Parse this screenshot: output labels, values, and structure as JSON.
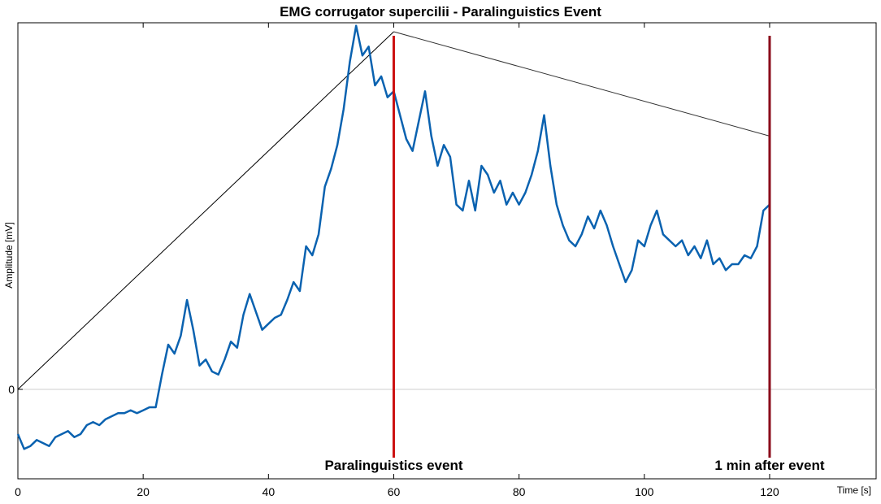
{
  "chart_data": {
    "type": "line",
    "title": "EMG corrugator supercilii - Paralinguistics Event",
    "xlabel": "Time [s]",
    "ylabel": "Amplitude [mV]",
    "xlim": [
      0,
      137
    ],
    "ylim": [
      -0.3,
      1.23
    ],
    "grid": false,
    "x_ticks": [
      0,
      20,
      40,
      60,
      80,
      100,
      120
    ],
    "x_tick_labels": [
      "0",
      "20",
      "40",
      "60",
      "80",
      "100",
      "120"
    ],
    "y_ticks": [
      0
    ],
    "y_tick_labels": [
      "0"
    ],
    "zero_line": true,
    "series": [
      {
        "color": "#0a62b0",
        "x": [
          0,
          1,
          2,
          3,
          4,
          5,
          6,
          7,
          8,
          9,
          10,
          11,
          12,
          13,
          14,
          15,
          16,
          17,
          18,
          19,
          20,
          21,
          22,
          23,
          24,
          25,
          26,
          27,
          28,
          29,
          30,
          31,
          32,
          33,
          34,
          35,
          36,
          37,
          38,
          39,
          40,
          41,
          42,
          43,
          44,
          45,
          46,
          47,
          48,
          49,
          50,
          51,
          52,
          53,
          54,
          55,
          56,
          57,
          58,
          59,
          60,
          61,
          62,
          63,
          64,
          65,
          66,
          67,
          68,
          69,
          70,
          71,
          72,
          73,
          74,
          75,
          76,
          77,
          78,
          79,
          80,
          81,
          82,
          83,
          84,
          85,
          86,
          87,
          88,
          89,
          90,
          91,
          92,
          93,
          94,
          95,
          96,
          97,
          98,
          99,
          100,
          101,
          102,
          103,
          104,
          105,
          106,
          107,
          108,
          109,
          110,
          111,
          112,
          113,
          114,
          115,
          116,
          117,
          118,
          119,
          120
        ],
        "values": [
          -0.15,
          -0.2,
          -0.19,
          -0.17,
          -0.18,
          -0.19,
          -0.16,
          -0.15,
          -0.14,
          -0.16,
          -0.15,
          -0.12,
          -0.11,
          -0.12,
          -0.1,
          -0.09,
          -0.08,
          -0.08,
          -0.07,
          -0.08,
          -0.07,
          -0.06,
          -0.06,
          0.05,
          0.15,
          0.12,
          0.18,
          0.3,
          0.2,
          0.08,
          0.1,
          0.06,
          0.05,
          0.1,
          0.16,
          0.14,
          0.25,
          0.32,
          0.26,
          0.2,
          0.22,
          0.24,
          0.25,
          0.3,
          0.36,
          0.33,
          0.48,
          0.45,
          0.52,
          0.68,
          0.74,
          0.82,
          0.94,
          1.1,
          1.22,
          1.12,
          1.15,
          1.02,
          1.05,
          0.98,
          1.0,
          0.92,
          0.84,
          0.8,
          0.9,
          1.0,
          0.85,
          0.75,
          0.82,
          0.78,
          0.62,
          0.6,
          0.7,
          0.6,
          0.75,
          0.72,
          0.66,
          0.7,
          0.62,
          0.66,
          0.62,
          0.66,
          0.72,
          0.8,
          0.92,
          0.75,
          0.62,
          0.55,
          0.5,
          0.48,
          0.52,
          0.58,
          0.54,
          0.6,
          0.55,
          0.48,
          0.42,
          0.36,
          0.4,
          0.5,
          0.48,
          0.55,
          0.6,
          0.52,
          0.5,
          0.48,
          0.5,
          0.45,
          0.48,
          0.44,
          0.5,
          0.42,
          0.44,
          0.4,
          0.42,
          0.42,
          0.45,
          0.44,
          0.48,
          0.6,
          0.62
        ]
      }
    ],
    "guide_lines": [
      {
        "color": "#000000",
        "x": [
          0,
          60
        ],
        "y": [
          0,
          1.2
        ]
      },
      {
        "color": "#333333",
        "x": [
          60,
          120
        ],
        "y": [
          1.2,
          0.85
        ]
      }
    ],
    "events": [
      {
        "x": 60,
        "label": "Paralinguistics event",
        "color": "#cc1111"
      },
      {
        "x": 120,
        "label": "1 min after event",
        "color": "#8b0a1a"
      }
    ]
  }
}
